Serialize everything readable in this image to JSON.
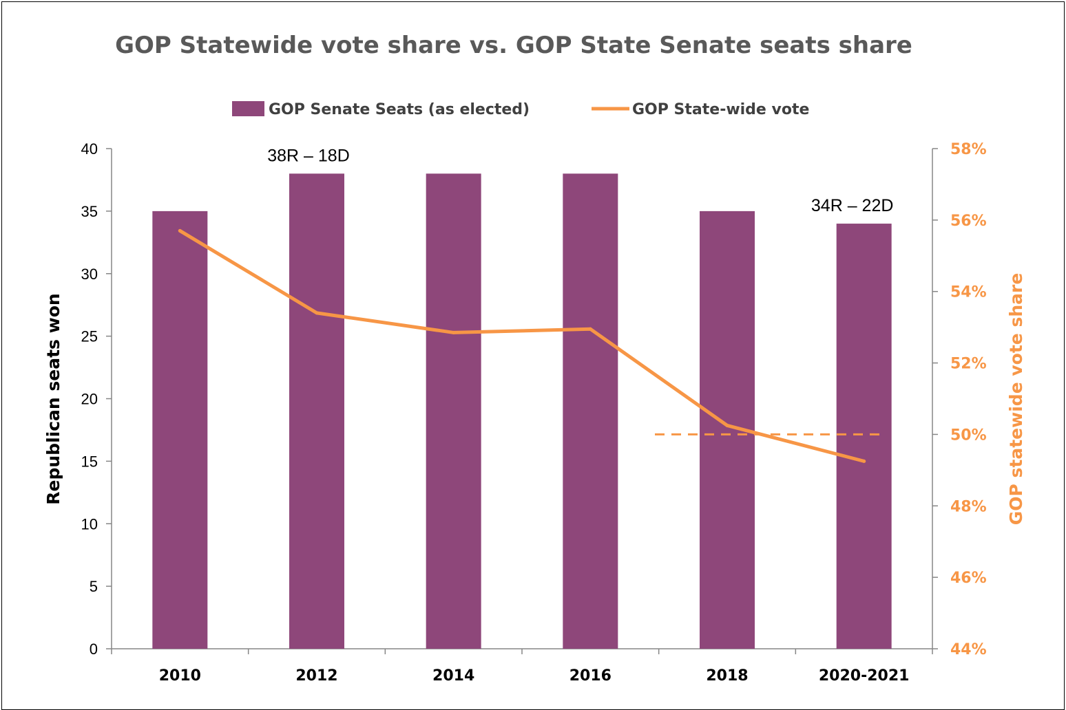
{
  "chart_data": {
    "type": "bar",
    "title": "GOP Statewide vote share vs. GOP State Senate seats share",
    "categories": [
      "2010",
      "2012",
      "2014",
      "2016",
      "2018",
      "2020-2021"
    ],
    "series": [
      {
        "name": "GOP Senate Seats (as elected)",
        "type": "bar",
        "axis": "left",
        "color": "#8E477A",
        "values": [
          35,
          38,
          38,
          38,
          35,
          34
        ]
      },
      {
        "name": "GOP State-wide vote",
        "type": "line",
        "axis": "right",
        "color": "#F79646",
        "values": [
          55.7,
          53.4,
          52.85,
          52.95,
          50.25,
          49.25
        ]
      }
    ],
    "reference_line": {
      "axis": "right",
      "value": 50,
      "style": "dashed",
      "color": "#F79646",
      "from_category": "2018",
      "to_category": "2020-2021"
    },
    "ylabel": "Republican seats won",
    "ylim": [
      0,
      40
    ],
    "yticks": [
      "0",
      "5",
      "10",
      "15",
      "20",
      "25",
      "30",
      "35",
      "40"
    ],
    "y2label": "GOP statewide vote share",
    "y2lim": [
      44,
      58
    ],
    "y2ticks": [
      "44%",
      "46%",
      "48%",
      "50%",
      "52%",
      "54%",
      "56%",
      "58%"
    ],
    "annotations": [
      {
        "text": "38R – 18D",
        "category": "2012"
      },
      {
        "text": "34R – 22D",
        "category": "2020-2021"
      }
    ],
    "legend": {
      "placement": "top-center"
    },
    "grid": false
  }
}
